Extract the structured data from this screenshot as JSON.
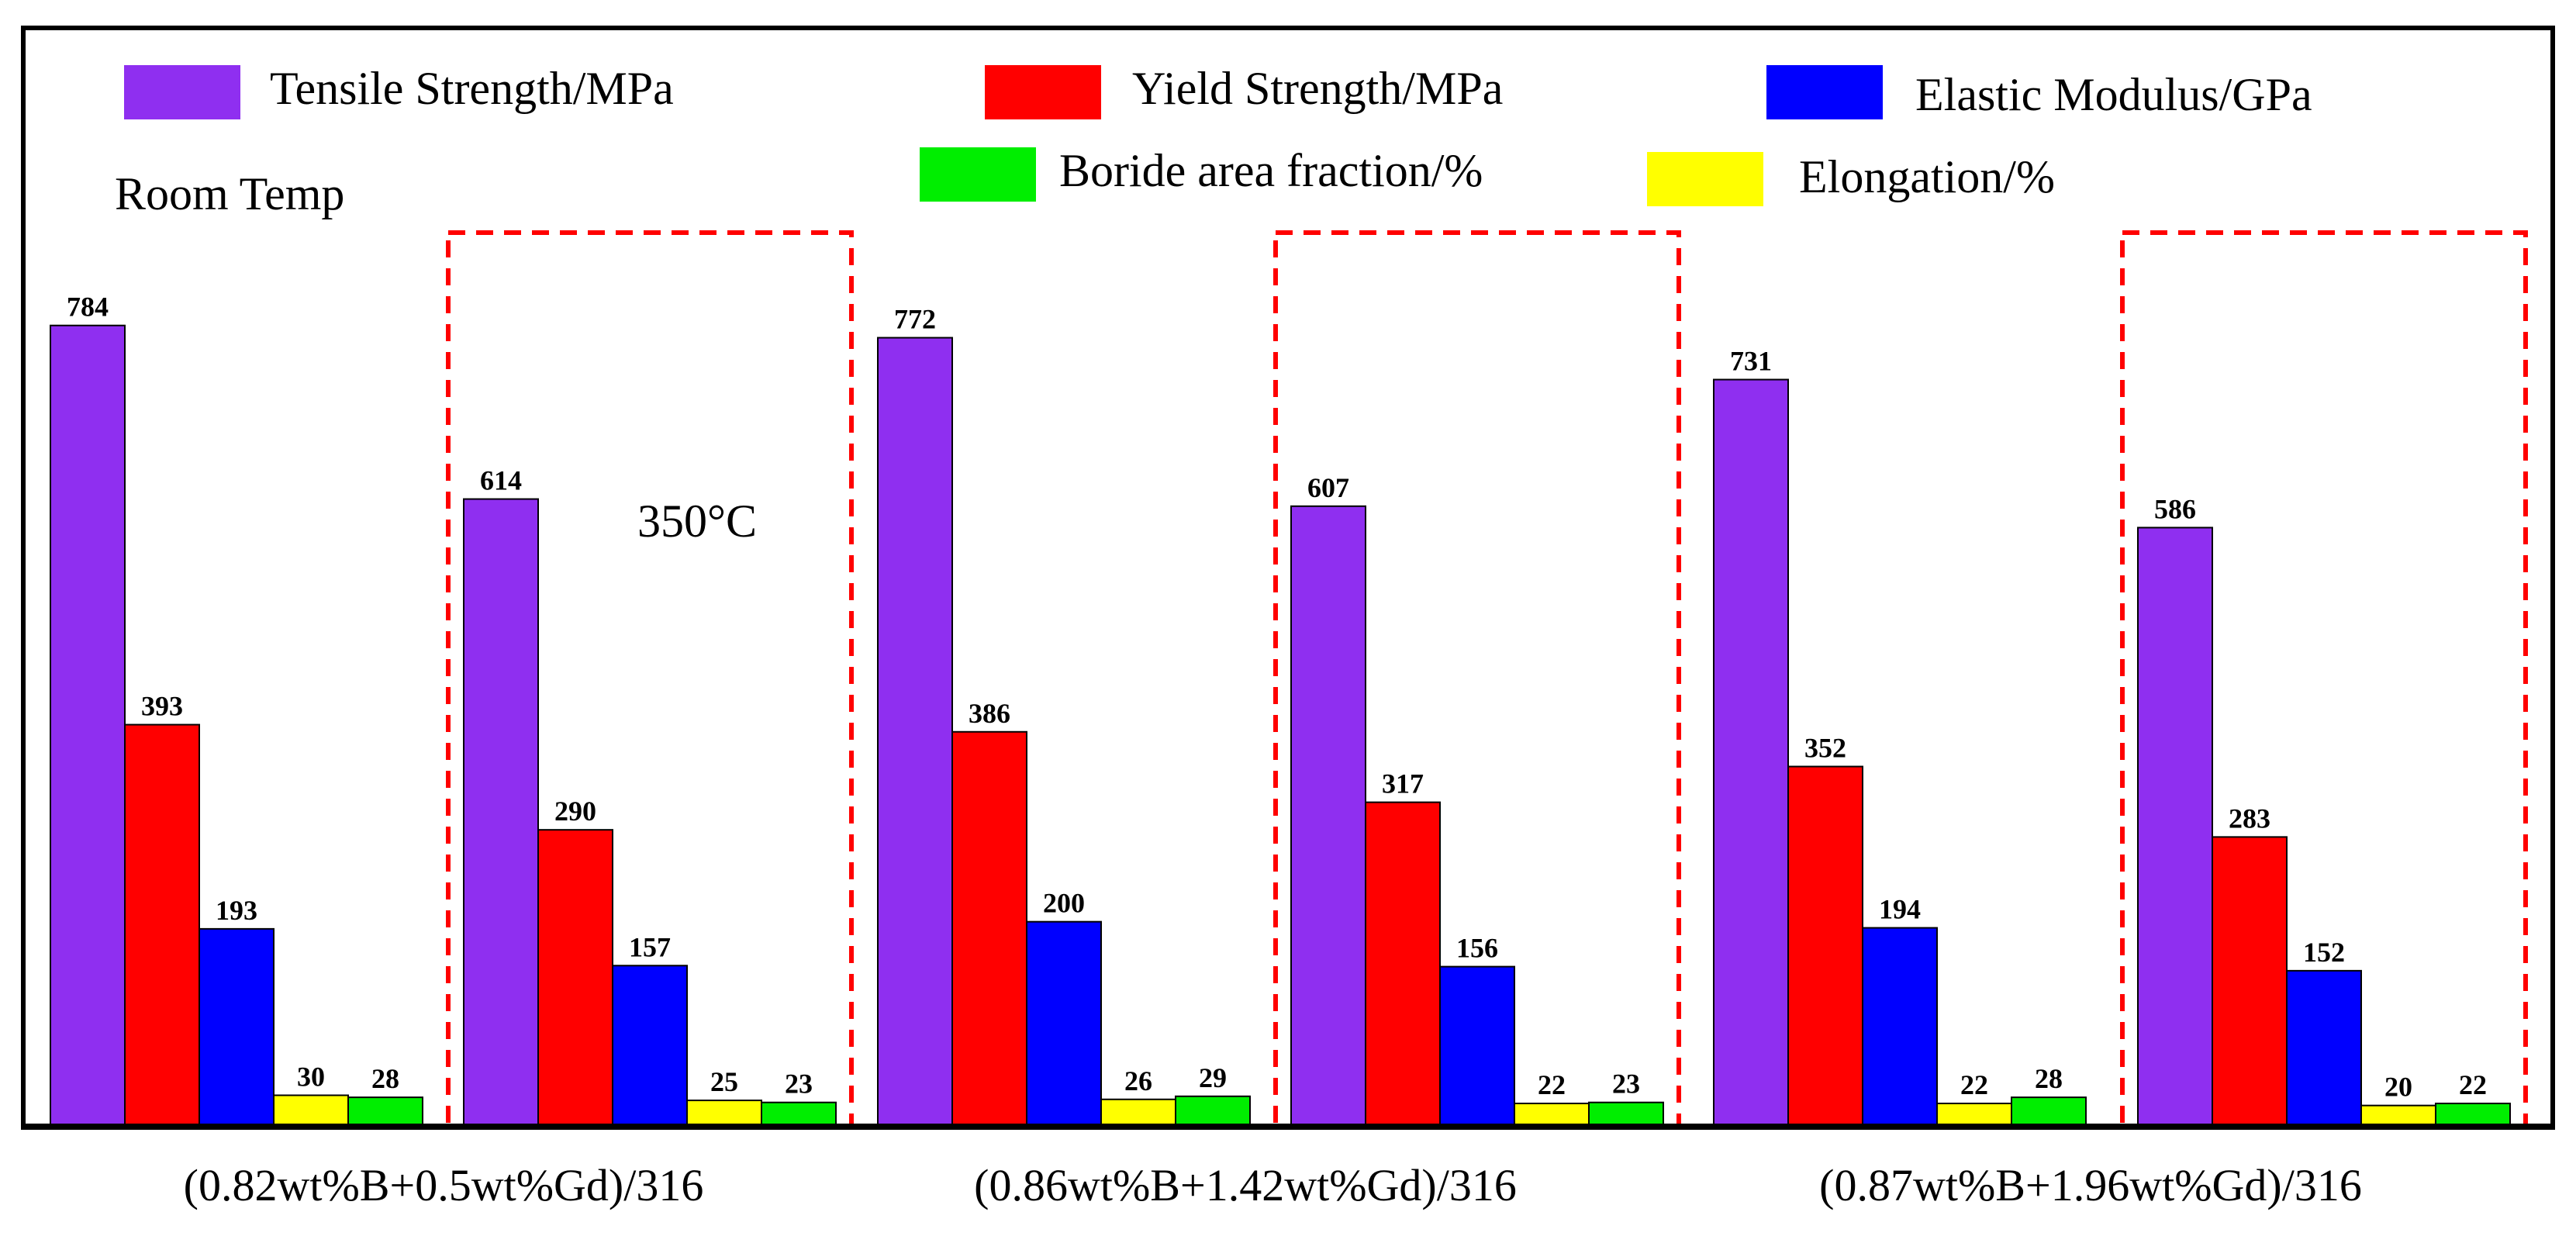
{
  "chart_data": {
    "type": "bar",
    "title": "",
    "xlabel": "",
    "ylabel": "",
    "ylim": [
      0,
      840
    ],
    "grid": false,
    "legend_position": "top",
    "series": [
      {
        "name": "Tensile Strength/MPa",
        "color": "#8f2ff0"
      },
      {
        "name": "Yield Strength/MPa",
        "color": "#ff0000"
      },
      {
        "name": "Elastic Modulus/GPa",
        "color": "#0000ff"
      },
      {
        "name": "Elongation/%",
        "color": "#ffff00"
      },
      {
        "name": "Boride area fraction/%",
        "color": "#00ee00"
      }
    ],
    "legend_order": [
      "Tensile Strength/MPa",
      "Yield Strength/MPa",
      "Elastic Modulus/GPa",
      "Boride area fraction/%",
      "Elongation/%"
    ],
    "groups": [
      {
        "label": "(0.82wt%B+0.5wt%Gd)/316",
        "temperature": "Room Temp",
        "values": [
          784,
          393,
          193,
          30,
          28
        ]
      },
      {
        "label": "(0.82wt%B+0.5wt%Gd)/316",
        "temperature": "350°C",
        "values": [
          614,
          290,
          157,
          25,
          23
        ]
      },
      {
        "label": "(0.86wt%B+1.42wt%Gd)/316",
        "temperature": "Room Temp",
        "values": [
          772,
          386,
          200,
          26,
          29
        ]
      },
      {
        "label": "(0.86wt%B+1.42wt%Gd)/316",
        "temperature": "350°C",
        "values": [
          607,
          317,
          156,
          22,
          23
        ]
      },
      {
        "label": "(0.87wt%B+1.96wt%Gd)/316",
        "temperature": "Room Temp",
        "values": [
          731,
          352,
          194,
          22,
          28
        ]
      },
      {
        "label": "(0.87wt%B+1.96wt%Gd)/316",
        "temperature": "350°C",
        "values": [
          586,
          283,
          152,
          20,
          22
        ]
      }
    ],
    "category_labels": [
      "(0.82wt%B+0.5wt%Gd)/316",
      "(0.86wt%B+1.42wt%Gd)/316",
      "(0.87wt%B+1.96wt%Gd)/316"
    ],
    "annotations": {
      "room_temp": "Room Temp",
      "high_temp": "350°C"
    }
  }
}
